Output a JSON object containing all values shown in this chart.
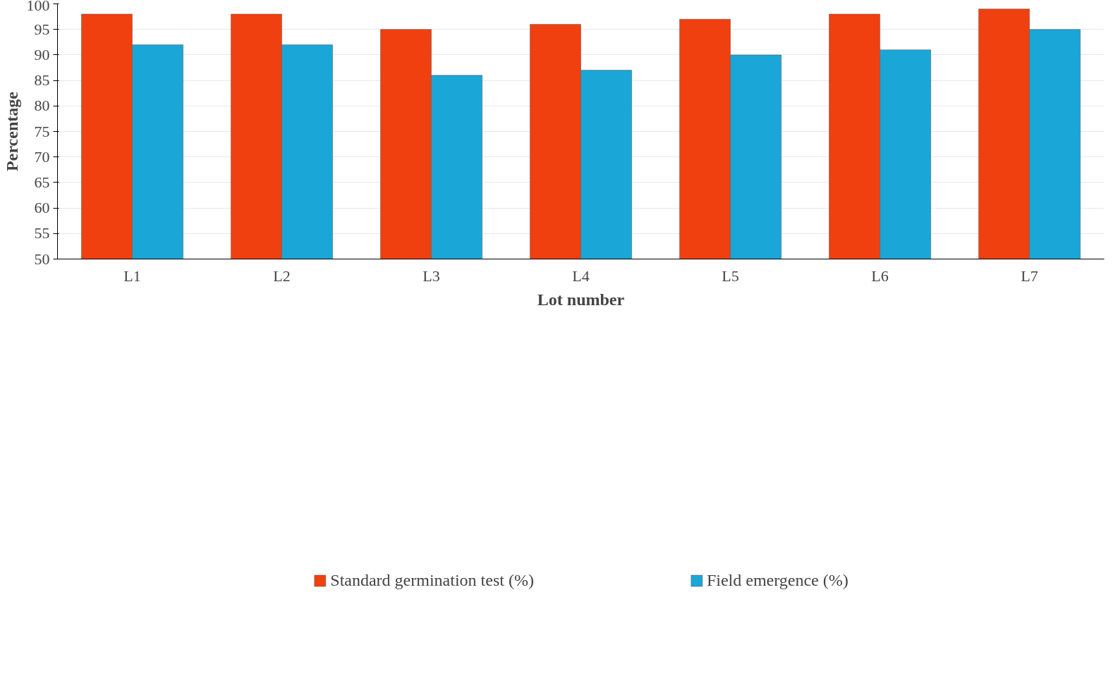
{
  "chart_data": {
    "type": "bar",
    "xlabel": "Lot number",
    "ylabel": "Percentage",
    "categories": [
      "L1",
      "L2",
      "L3",
      "L4",
      "L5",
      "L6",
      "L7"
    ],
    "series": [
      {
        "name": "Standard germination test (%)",
        "color": "#f04010",
        "values": [
          98,
          98,
          95,
          96,
          97,
          98,
          99
        ]
      },
      {
        "name": "Field emergence (%)",
        "color": "#1aa6d6",
        "values": [
          92,
          92,
          86,
          87,
          90,
          91,
          95
        ]
      }
    ],
    "ylim": [
      50,
      100
    ],
    "yticks": [
      50,
      55,
      60,
      65,
      70,
      75,
      80,
      85,
      90,
      95,
      100
    ],
    "grid": "y",
    "legend": "bottom"
  }
}
